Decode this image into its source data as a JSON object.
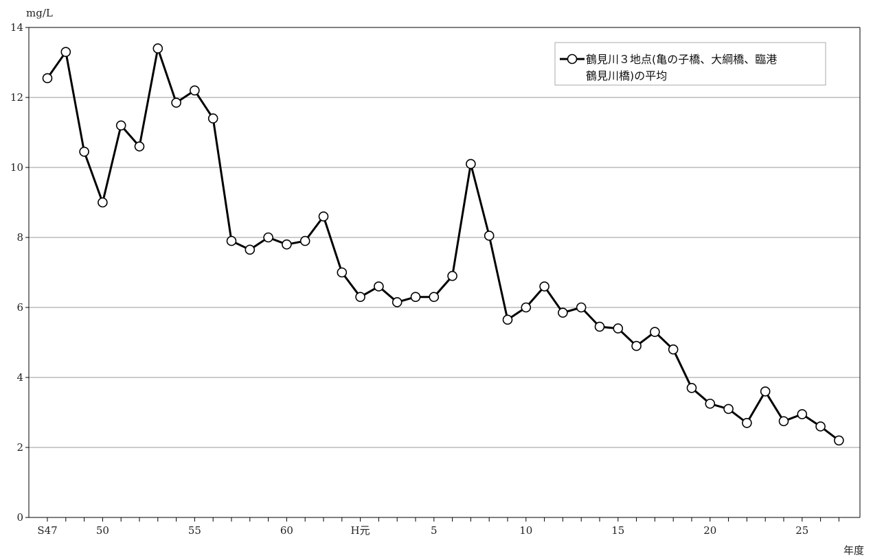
{
  "chart_data": {
    "type": "line",
    "ylabel": "mg/L",
    "xlabel": "年度",
    "ylim": [
      0,
      14
    ],
    "yticks": [
      0,
      2,
      4,
      6,
      8,
      10,
      12,
      14
    ],
    "grid": true,
    "legend_position": "top-right",
    "x_tick_labels": [
      {
        "index": 0,
        "label": "S47"
      },
      {
        "index": 3,
        "label": "50"
      },
      {
        "index": 8,
        "label": "55"
      },
      {
        "index": 13,
        "label": "60"
      },
      {
        "index": 17,
        "label": "H元"
      },
      {
        "index": 21,
        "label": "5"
      },
      {
        "index": 26,
        "label": "10"
      },
      {
        "index": 31,
        "label": "15"
      },
      {
        "index": 36,
        "label": "20"
      },
      {
        "index": 41,
        "label": "25"
      }
    ],
    "series": [
      {
        "name": "鶴見川３地点(亀の子橋、大綱橋、臨港鶴見川橋)の平均",
        "legend_lines": [
          "鶴見川３地点(亀の子橋、大綱橋、臨港",
          "鶴見川橋)の平均"
        ],
        "color": "#000000",
        "marker": "open-circle",
        "values": [
          12.55,
          13.3,
          10.45,
          9.0,
          11.2,
          10.6,
          13.4,
          11.85,
          12.2,
          11.4,
          7.9,
          7.65,
          8.0,
          7.8,
          7.9,
          8.6,
          7.0,
          6.3,
          6.6,
          6.15,
          6.3,
          6.3,
          6.9,
          10.1,
          8.05,
          5.65,
          6.0,
          6.6,
          5.85,
          6.0,
          5.45,
          5.4,
          4.9,
          5.3,
          4.8,
          3.7,
          3.25,
          3.1,
          2.7,
          3.6,
          2.75,
          2.95,
          2.6,
          2.2
        ]
      }
    ]
  }
}
